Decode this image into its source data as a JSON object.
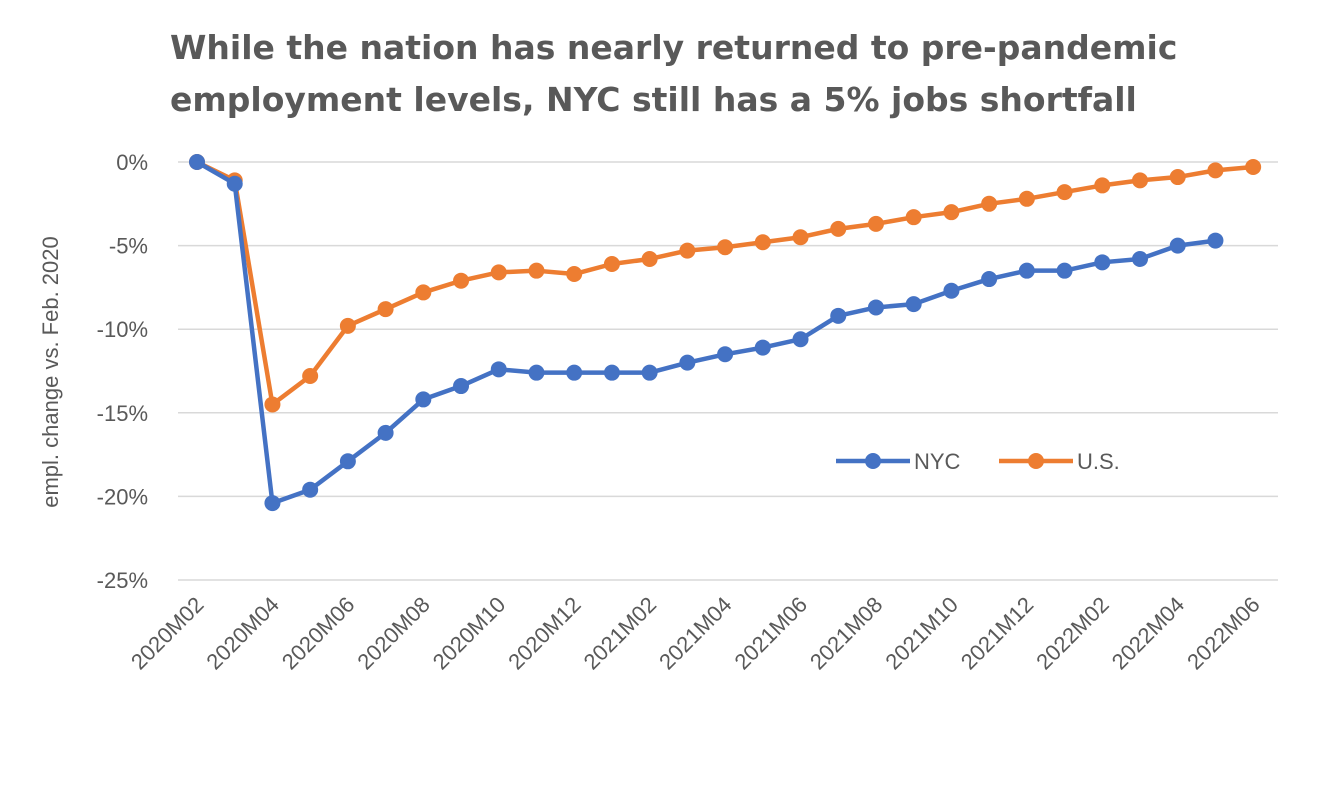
{
  "chart_data": {
    "type": "line",
    "title_lines": [
      "While the nation has nearly returned to pre-pandemic",
      "employment levels, NYC still has a 5% jobs shortfall"
    ],
    "ylabel": "empl. change vs. Feb. 2020",
    "xlabel": "",
    "ylim": [
      -25,
      0
    ],
    "y_ticks": [
      {
        "value": 0,
        "label": "0%"
      },
      {
        "value": -5,
        "label": "-5%"
      },
      {
        "value": -10,
        "label": "-10%"
      },
      {
        "value": -15,
        "label": "-15%"
      },
      {
        "value": -20,
        "label": "-20%"
      },
      {
        "value": -25,
        "label": "-25%"
      }
    ],
    "grid": true,
    "legend_position": "right-middle",
    "x": [
      "2020M02",
      "2020M03",
      "2020M04",
      "2020M05",
      "2020M06",
      "2020M07",
      "2020M08",
      "2020M09",
      "2020M10",
      "2020M11",
      "2020M12",
      "2021M01",
      "2021M02",
      "2021M03",
      "2021M04",
      "2021M05",
      "2021M06",
      "2021M07",
      "2021M08",
      "2021M09",
      "2021M10",
      "2021M11",
      "2021M12",
      "2022M01",
      "2022M02",
      "2022M03",
      "2022M04",
      "2022M05",
      "2022M06"
    ],
    "x_tick_labels": [
      "2020M02",
      "2020M04",
      "2020M06",
      "2020M08",
      "2020M10",
      "2020M12",
      "2021M02",
      "2021M04",
      "2021M06",
      "2021M08",
      "2021M10",
      "2021M12",
      "2022M02",
      "2022M04",
      "2022M06"
    ],
    "series": [
      {
        "name": "NYC",
        "color": "#4472c4",
        "values": [
          0,
          -1.3,
          -20.4,
          -19.6,
          -17.9,
          -16.2,
          -14.2,
          -13.4,
          -12.4,
          -12.6,
          -12.6,
          -12.6,
          -12.6,
          -12.0,
          -11.5,
          -11.1,
          -10.6,
          -9.2,
          -8.7,
          -8.5,
          -7.7,
          -7.0,
          -6.5,
          -6.5,
          -6.0,
          -5.8,
          -5.0,
          -4.7,
          null
        ]
      },
      {
        "name": "U.S.",
        "color": "#ed7d31",
        "values": [
          0,
          -1.1,
          -14.5,
          -12.8,
          -9.8,
          -8.8,
          -7.8,
          -7.1,
          -6.6,
          -6.5,
          -6.7,
          -6.1,
          -5.8,
          -5.3,
          -5.1,
          -4.8,
          -4.5,
          -4.0,
          -3.7,
          -3.3,
          -3.0,
          -2.5,
          -2.2,
          -1.8,
          -1.4,
          -1.1,
          -0.9,
          -0.5,
          -0.3
        ]
      }
    ]
  }
}
